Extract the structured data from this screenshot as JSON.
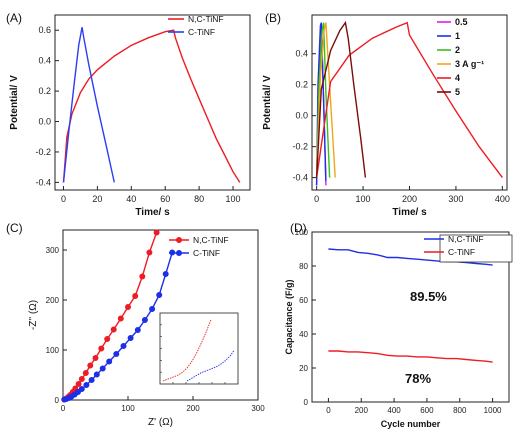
{
  "chart_data": [
    {
      "panel_label": "(A)",
      "type": "line",
      "xlabel": "Time/ s",
      "ylabel": "Potential/ V",
      "xlim": [
        -5,
        110
      ],
      "ylim": [
        -0.45,
        0.7
      ],
      "xticks": [
        "0",
        "20",
        "40",
        "60",
        "80",
        "100"
      ],
      "xtick_values": [
        0,
        20,
        40,
        60,
        80,
        100
      ],
      "yticks": [
        "-0.4",
        "-0.2",
        "0.0",
        "0.2",
        "0.4",
        "0.6"
      ],
      "ytick_values": [
        -0.4,
        -0.2,
        0.0,
        0.2,
        0.4,
        0.6
      ],
      "legend_position": "top-right",
      "series": [
        {
          "name": "N,C-TiNF",
          "color": "#ee1c24",
          "x": [
            0,
            2,
            5,
            10,
            15,
            20,
            30,
            40,
            50,
            60,
            65,
            66,
            70,
            75,
            80,
            85,
            90,
            95,
            100,
            104
          ],
          "y": [
            -0.4,
            -0.1,
            0.05,
            0.19,
            0.28,
            0.34,
            0.43,
            0.5,
            0.55,
            0.59,
            0.6,
            0.55,
            0.42,
            0.28,
            0.15,
            0.02,
            -0.11,
            -0.22,
            -0.33,
            -0.4
          ]
        },
        {
          "name": "C-TiNF",
          "color": "#2a3ff5",
          "x": [
            0,
            3,
            6,
            9,
            11,
            12,
            15,
            20,
            25,
            30
          ],
          "y": [
            -0.4,
            -0.08,
            0.22,
            0.5,
            0.62,
            0.55,
            0.37,
            0.1,
            -0.15,
            -0.4
          ]
        }
      ]
    },
    {
      "panel_label": "(B)",
      "type": "line",
      "xlabel": "Time/ s",
      "ylabel": "Potential/ V",
      "xlim": [
        -10,
        410
      ],
      "ylim": [
        -0.48,
        0.65
      ],
      "xticks": [
        "0",
        "100",
        "200",
        "300",
        "400"
      ],
      "xtick_values": [
        0,
        100,
        200,
        300,
        400
      ],
      "yticks": [
        "-0.4",
        "-0.2",
        "0.0",
        "0.2",
        "0.4"
      ],
      "ytick_values": [
        -0.4,
        -0.2,
        0.0,
        0.2,
        0.4
      ],
      "legend_position": "top-right",
      "series": [
        {
          "name": "0.5",
          "color": "#e41ae4",
          "x": [
            0,
            5,
            10,
            15,
            20
          ],
          "y": [
            -0.45,
            0.2,
            0.6,
            0.1,
            -0.45
          ]
        },
        {
          "name": "1",
          "color": "#1f2fe8",
          "x": [
            0,
            3,
            8,
            10,
            15,
            20
          ],
          "y": [
            -0.45,
            0.2,
            0.58,
            0.6,
            0.1,
            -0.42
          ]
        },
        {
          "name": "2",
          "color": "#35c21b",
          "x": [
            0,
            5,
            12,
            15,
            20,
            28
          ],
          "y": [
            -0.4,
            0.2,
            0.55,
            0.6,
            0.15,
            -0.4
          ]
        },
        {
          "name": "3  A g⁻¹",
          "color": "#f2a51c",
          "x": [
            0,
            8,
            16,
            20,
            28,
            40
          ],
          "y": [
            -0.4,
            0.25,
            0.55,
            0.6,
            0.2,
            -0.4
          ]
        },
        {
          "name": "4",
          "color": "#ee1c24",
          "x": [
            0,
            30,
            70,
            120,
            170,
            195,
            200,
            250,
            300,
            350,
            400
          ],
          "y": [
            -0.4,
            0.22,
            0.39,
            0.5,
            0.57,
            0.6,
            0.52,
            0.27,
            0.03,
            -0.2,
            -0.4
          ]
        },
        {
          "name": "5",
          "color": "#7a0c0c",
          "x": [
            0,
            10,
            30,
            50,
            62,
            68,
            80,
            95,
            105
          ],
          "y": [
            -0.4,
            0.17,
            0.42,
            0.55,
            0.6,
            0.5,
            0.2,
            -0.15,
            -0.4
          ]
        }
      ]
    },
    {
      "panel_label": "(C)",
      "type": "scatter",
      "xlabel": "Z' (Ω)",
      "ylabel": "-Z'' (Ω)",
      "xlim": [
        0,
        300
      ],
      "ylim": [
        0,
        340
      ],
      "xticks": [
        "0",
        "100",
        "200",
        "300"
      ],
      "xtick_values": [
        0,
        100,
        200,
        300
      ],
      "yticks": [
        "0",
        "100",
        "200",
        "300"
      ],
      "ytick_values": [
        0,
        100,
        200,
        300
      ],
      "legend_position": "top-right",
      "series": [
        {
          "name": "N,C-TiNF",
          "color": "#ee1c24",
          "marker": "circle-open-filled",
          "x": [
            2,
            5,
            8,
            11,
            15,
            19,
            24,
            29,
            35,
            42,
            50,
            59,
            68,
            78,
            89,
            100,
            111,
            122,
            133,
            144
          ],
          "y": [
            1,
            3,
            6,
            10,
            16,
            23,
            32,
            42,
            54,
            69,
            84,
            103,
            122,
            141,
            163,
            186,
            208,
            247,
            295,
            335
          ]
        },
        {
          "name": "C-TiNF",
          "color": "#1f2fe8",
          "marker": "circle-open-filled",
          "x": [
            2,
            5,
            9,
            13,
            18,
            23,
            29,
            36,
            44,
            52,
            61,
            71,
            82,
            93,
            104,
            115,
            126,
            137,
            148,
            158,
            168
          ],
          "y": [
            1,
            2,
            4,
            7,
            11,
            16,
            22,
            30,
            40,
            51,
            63,
            77,
            92,
            108,
            124,
            140,
            160,
            182,
            210,
            252,
            295
          ]
        }
      ],
      "inset": {
        "series": [
          {
            "name": "N,C-TiNF",
            "color": "#ee1c24",
            "x": [
              0,
              5,
              10,
              15,
              20,
              25,
              30,
              35,
              40,
              45,
              50
            ],
            "y": [
              0,
              2,
              4,
              6,
              9,
              14,
              21,
              30,
              41,
              53,
              66
            ]
          },
          {
            "name": "C-TiNF",
            "color": "#1f2fe8",
            "x": [
              25,
              30,
              35,
              40,
              45,
              50,
              55,
              60,
              65,
              70,
              74
            ],
            "y": [
              0,
              3,
              6,
              9,
              11,
              13,
              15,
              18,
              22,
              27,
              33
            ]
          }
        ],
        "xlim": [
          0,
          75
        ],
        "ylim": [
          0,
          70
        ]
      }
    },
    {
      "panel_label": "(D)",
      "type": "line",
      "xlabel": "Cycle number",
      "ylabel": "Capacitance (F/g)",
      "xlim": [
        -100,
        1100
      ],
      "ylim": [
        0,
        100
      ],
      "xticks": [
        "0",
        "200",
        "400",
        "600",
        "800",
        "1000"
      ],
      "xtick_values": [
        0,
        200,
        400,
        600,
        800,
        1000
      ],
      "yticks": [
        "0",
        "20",
        "40",
        "60",
        "80",
        "100"
      ],
      "ytick_values": [
        0,
        20,
        40,
        60,
        80,
        100
      ],
      "legend_position": "top-right",
      "series": [
        {
          "name": "N,C-TiNF",
          "color": "#1f2fe8",
          "x": [
            0,
            60,
            120,
            180,
            240,
            300,
            360,
            420,
            480,
            540,
            600,
            660,
            720,
            780,
            840,
            900,
            960,
            1000
          ],
          "y": [
            90,
            89.5,
            89.5,
            88,
            87.5,
            86.5,
            85,
            85,
            84.5,
            84,
            83.5,
            83,
            82.5,
            82.5,
            82,
            81.5,
            81,
            80.5
          ]
        },
        {
          "name": "C-TiNF",
          "color": "#ee1c24",
          "x": [
            0,
            60,
            120,
            180,
            240,
            300,
            360,
            420,
            480,
            540,
            600,
            660,
            720,
            780,
            840,
            900,
            960,
            1000
          ],
          "y": [
            30,
            30,
            29.5,
            29.5,
            29,
            28.5,
            27.5,
            27,
            27,
            26.5,
            26.5,
            26,
            25.5,
            25.5,
            25,
            24.5,
            24,
            23.5
          ]
        }
      ],
      "annotations": [
        "89.5%",
        "78%"
      ]
    }
  ]
}
